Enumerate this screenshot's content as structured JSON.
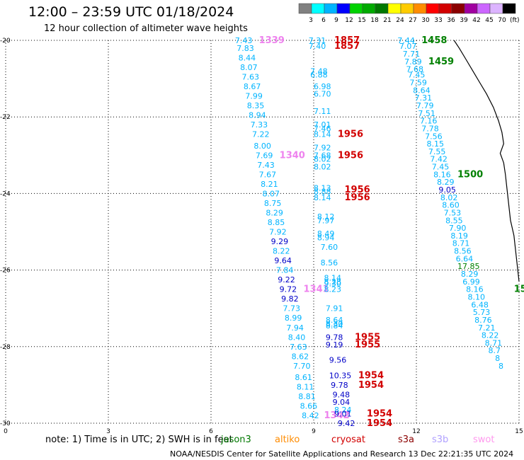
{
  "header": {
    "title": "12:00 – 23:59 UTC 01/18/2024",
    "subtitle": "12 hour collection of altimeter wave heights"
  },
  "legend": {
    "unit": "(ft)",
    "bins": [
      {
        "label": "3",
        "color": "#808080"
      },
      {
        "label": "6",
        "color": "#00ffff"
      },
      {
        "label": "9",
        "color": "#00b4ff"
      },
      {
        "label": "12",
        "color": "#0000ff"
      },
      {
        "label": "15",
        "color": "#00d200"
      },
      {
        "label": "18",
        "color": "#00aa00"
      },
      {
        "label": "21",
        "color": "#007800"
      },
      {
        "label": "24",
        "color": "#ffff00"
      },
      {
        "label": "27",
        "color": "#ffcc00"
      },
      {
        "label": "30",
        "color": "#ff8c00"
      },
      {
        "label": "33",
        "color": "#ff0000"
      },
      {
        "label": "36",
        "color": "#d20000"
      },
      {
        "label": "39",
        "color": "#8b0000"
      },
      {
        "label": "42",
        "color": "#a000a0"
      },
      {
        "label": "45",
        "color": "#cc66ff"
      },
      {
        "label": "70",
        "color": "#dcb4ff"
      },
      {
        "label": "",
        "color": "#000000"
      }
    ]
  },
  "axes": {
    "x_ticks": [
      "0",
      "3",
      "6",
      "9",
      "12",
      "15"
    ],
    "y_ticks": [
      "-20",
      "-22",
      "-24",
      "-26",
      "-28",
      "-30"
    ]
  },
  "map_data": {
    "lon_range": [
      0,
      15
    ],
    "lat_range": [
      -30,
      -20
    ],
    "grid": true,
    "coastline": [
      [
        13.1,
        -20.0
      ],
      [
        13.25,
        -20.2
      ],
      [
        13.45,
        -20.5
      ],
      [
        13.65,
        -20.8
      ],
      [
        13.85,
        -21.1
      ],
      [
        14.05,
        -21.4
      ],
      [
        14.25,
        -21.75
      ],
      [
        14.4,
        -22.1
      ],
      [
        14.5,
        -22.4
      ],
      [
        14.55,
        -22.7
      ],
      [
        14.45,
        -22.95
      ],
      [
        14.55,
        -23.2
      ],
      [
        14.6,
        -23.5
      ],
      [
        14.65,
        -23.9
      ],
      [
        14.7,
        -24.3
      ],
      [
        14.75,
        -24.7
      ],
      [
        14.85,
        -25.1
      ],
      [
        14.9,
        -25.5
      ],
      [
        14.95,
        -25.9
      ],
      [
        15.0,
        -26.3
      ]
    ],
    "track_colors": {
      "cyan": "#00b4ff",
      "blue": "#0000c8",
      "red": "#d20000",
      "green": "#008000",
      "pink": "#ee82ee"
    },
    "labels": [
      {
        "t": "7.43",
        "lon": 6.7,
        "lat": -20.0,
        "c": "cyan"
      },
      {
        "t": "1339",
        "lon": 7.4,
        "lat": -20.0,
        "c": "pink",
        "big": true
      },
      {
        "t": "7.83",
        "lon": 6.75,
        "lat": -20.2,
        "c": "cyan"
      },
      {
        "t": "8.44",
        "lon": 6.8,
        "lat": -20.45,
        "c": "cyan"
      },
      {
        "t": "8.07",
        "lon": 6.85,
        "lat": -20.7,
        "c": "cyan"
      },
      {
        "t": "7.63",
        "lon": 6.9,
        "lat": -20.95,
        "c": "cyan"
      },
      {
        "t": "8.67",
        "lon": 6.95,
        "lat": -21.2,
        "c": "cyan"
      },
      {
        "t": "7.99",
        "lon": 7.0,
        "lat": -21.45,
        "c": "cyan"
      },
      {
        "t": "8.35",
        "lon": 7.05,
        "lat": -21.7,
        "c": "cyan"
      },
      {
        "t": "8.94",
        "lon": 7.1,
        "lat": -21.95,
        "c": "cyan"
      },
      {
        "t": "7.33",
        "lon": 7.15,
        "lat": -22.2,
        "c": "cyan"
      },
      {
        "t": "7.22",
        "lon": 7.2,
        "lat": -22.45,
        "c": "cyan"
      },
      {
        "t": "8.00",
        "lon": 7.25,
        "lat": -22.75,
        "c": "cyan"
      },
      {
        "t": "7.69",
        "lon": 7.3,
        "lat": -23.0,
        "c": "cyan"
      },
      {
        "t": "1340",
        "lon": 8.0,
        "lat": -23.0,
        "c": "pink",
        "big": true
      },
      {
        "t": "7.43",
        "lon": 7.35,
        "lat": -23.25,
        "c": "cyan"
      },
      {
        "t": "7.67",
        "lon": 7.4,
        "lat": -23.5,
        "c": "cyan"
      },
      {
        "t": "8.21",
        "lon": 7.45,
        "lat": -23.75,
        "c": "cyan"
      },
      {
        "t": "8.07",
        "lon": 7.5,
        "lat": -24.0,
        "c": "cyan"
      },
      {
        "t": "8.75",
        "lon": 7.55,
        "lat": -24.25,
        "c": "cyan"
      },
      {
        "t": "8.29",
        "lon": 7.6,
        "lat": -24.5,
        "c": "cyan"
      },
      {
        "t": "8.85",
        "lon": 7.65,
        "lat": -24.75,
        "c": "cyan"
      },
      {
        "t": "7.92",
        "lon": 7.7,
        "lat": -25.0,
        "c": "cyan"
      },
      {
        "t": "9.29",
        "lon": 7.75,
        "lat": -25.25,
        "c": "blue"
      },
      {
        "t": "8.22",
        "lon": 7.8,
        "lat": -25.5,
        "c": "cyan"
      },
      {
        "t": "9.64",
        "lon": 7.85,
        "lat": -25.75,
        "c": "blue"
      },
      {
        "t": "7.84",
        "lon": 7.9,
        "lat": -26.0,
        "c": "cyan"
      },
      {
        "t": "9.22",
        "lon": 7.95,
        "lat": -26.25,
        "c": "blue"
      },
      {
        "t": "9.72",
        "lon": 8.0,
        "lat": -26.5,
        "c": "blue"
      },
      {
        "t": "1341",
        "lon": 8.7,
        "lat": -26.5,
        "c": "pink",
        "big": true
      },
      {
        "t": "9.82",
        "lon": 8.05,
        "lat": -26.75,
        "c": "blue"
      },
      {
        "t": "7.73",
        "lon": 8.1,
        "lat": -27.0,
        "c": "cyan"
      },
      {
        "t": "8.99",
        "lon": 8.15,
        "lat": -27.25,
        "c": "cyan"
      },
      {
        "t": "7.94",
        "lon": 8.2,
        "lat": -27.5,
        "c": "cyan"
      },
      {
        "t": "8.40",
        "lon": 8.25,
        "lat": -27.75,
        "c": "cyan"
      },
      {
        "t": "7.63",
        "lon": 8.3,
        "lat": -28.0,
        "c": "cyan"
      },
      {
        "t": "8.62",
        "lon": 8.35,
        "lat": -28.25,
        "c": "cyan"
      },
      {
        "t": "7.70",
        "lon": 8.4,
        "lat": -28.5,
        "c": "cyan"
      },
      {
        "t": "8.61",
        "lon": 8.45,
        "lat": -28.8,
        "c": "cyan"
      },
      {
        "t": "8.11",
        "lon": 8.5,
        "lat": -29.05,
        "c": "cyan"
      },
      {
        "t": "8.81",
        "lon": 8.55,
        "lat": -29.3,
        "c": "cyan"
      },
      {
        "t": "8.66",
        "lon": 8.6,
        "lat": -29.55,
        "c": "cyan"
      },
      {
        "t": "8.42",
        "lon": 8.65,
        "lat": -29.8,
        "c": "cyan"
      },
      {
        "t": "1342",
        "lon": 9.3,
        "lat": -29.8,
        "c": "pink",
        "big": true
      },
      {
        "t": "7.31",
        "lon": 8.85,
        "lat": -20.0,
        "c": "cyan"
      },
      {
        "t": "1857",
        "lon": 9.6,
        "lat": -20.0,
        "c": "red",
        "big": true
      },
      {
        "t": "7.40",
        "lon": 8.85,
        "lat": -20.15,
        "c": "cyan"
      },
      {
        "t": "1857",
        "lon": 9.6,
        "lat": -20.15,
        "c": "red",
        "big": true
      },
      {
        "t": "7.48",
        "lon": 8.9,
        "lat": -20.8,
        "c": "cyan"
      },
      {
        "t": "6.88",
        "lon": 8.9,
        "lat": -20.9,
        "c": "cyan"
      },
      {
        "t": "6.98",
        "lon": 9.0,
        "lat": -21.2,
        "c": "cyan"
      },
      {
        "t": "6.70",
        "lon": 9.0,
        "lat": -21.4,
        "c": "cyan"
      },
      {
        "t": "7.11",
        "lon": 9.0,
        "lat": -21.85,
        "c": "cyan"
      },
      {
        "t": "7.01",
        "lon": 9.0,
        "lat": -22.2,
        "c": "cyan"
      },
      {
        "t": "7.46",
        "lon": 9.0,
        "lat": -22.3,
        "c": "cyan"
      },
      {
        "t": "8.14",
        "lon": 9.0,
        "lat": -22.45,
        "c": "cyan"
      },
      {
        "t": "1956",
        "lon": 9.7,
        "lat": -22.45,
        "c": "red",
        "big": true
      },
      {
        "t": "7.92",
        "lon": 9.0,
        "lat": -22.8,
        "c": "cyan"
      },
      {
        "t": "7.68",
        "lon": 9.0,
        "lat": -23.0,
        "c": "cyan"
      },
      {
        "t": "1956",
        "lon": 9.7,
        "lat": -23.0,
        "c": "red",
        "big": true
      },
      {
        "t": "8.02",
        "lon": 9.0,
        "lat": -23.1,
        "c": "cyan"
      },
      {
        "t": "8.02",
        "lon": 9.0,
        "lat": -23.3,
        "c": "cyan"
      },
      {
        "t": "8.13",
        "lon": 9.0,
        "lat": -23.85,
        "c": "cyan"
      },
      {
        "t": "1956",
        "lon": 9.9,
        "lat": -23.9,
        "c": "red",
        "big": true
      },
      {
        "t": "8.88",
        "lon": 9.0,
        "lat": -23.95,
        "c": "cyan"
      },
      {
        "t": "8.14",
        "lon": 9.0,
        "lat": -24.1,
        "c": "cyan"
      },
      {
        "t": "1956",
        "lon": 9.9,
        "lat": -24.1,
        "c": "red",
        "big": true
      },
      {
        "t": "8.12",
        "lon": 9.1,
        "lat": -24.6,
        "c": "cyan"
      },
      {
        "t": "7.97",
        "lon": 9.1,
        "lat": -24.7,
        "c": "cyan"
      },
      {
        "t": "8.49",
        "lon": 9.1,
        "lat": -25.05,
        "c": "cyan"
      },
      {
        "t": "8.94",
        "lon": 9.1,
        "lat": -25.15,
        "c": "cyan"
      },
      {
        "t": "7.60",
        "lon": 9.2,
        "lat": -25.4,
        "c": "cyan"
      },
      {
        "t": "8.56",
        "lon": 9.2,
        "lat": -25.8,
        "c": "cyan"
      },
      {
        "t": "8.14",
        "lon": 9.3,
        "lat": -26.2,
        "c": "cyan"
      },
      {
        "t": "8.28",
        "lon": 9.3,
        "lat": -26.3,
        "c": "cyan"
      },
      {
        "t": "9.30",
        "lon": 9.3,
        "lat": -26.35,
        "c": "cyan"
      },
      {
        "t": "8.23",
        "lon": 9.3,
        "lat": -26.5,
        "c": "cyan"
      },
      {
        "t": "7.91",
        "lon": 9.35,
        "lat": -27.0,
        "c": "cyan"
      },
      {
        "t": "8.64",
        "lon": 9.35,
        "lat": -27.3,
        "c": "cyan"
      },
      {
        "t": "8.30",
        "lon": 9.35,
        "lat": -27.4,
        "c": "cyan"
      },
      {
        "t": "8.84",
        "lon": 9.35,
        "lat": -27.45,
        "c": "cyan"
      },
      {
        "t": "9.78",
        "lon": 9.35,
        "lat": -27.75,
        "c": "blue"
      },
      {
        "t": "1955",
        "lon": 10.2,
        "lat": -27.75,
        "c": "red",
        "big": true
      },
      {
        "t": "9.19",
        "lon": 9.35,
        "lat": -27.95,
        "c": "blue"
      },
      {
        "t": "1955",
        "lon": 10.2,
        "lat": -27.95,
        "c": "red",
        "big": true
      },
      {
        "t": "9.56",
        "lon": 9.45,
        "lat": -28.35,
        "c": "blue"
      },
      {
        "t": "10.35",
        "lon": 9.45,
        "lat": -28.75,
        "c": "blue"
      },
      {
        "t": "1954",
        "lon": 10.3,
        "lat": -28.75,
        "c": "red",
        "big": true
      },
      {
        "t": "9.78",
        "lon": 9.5,
        "lat": -29.0,
        "c": "blue"
      },
      {
        "t": "1954",
        "lon": 10.3,
        "lat": -29.0,
        "c": "red",
        "big": true
      },
      {
        "t": "9.48",
        "lon": 9.55,
        "lat": -29.25,
        "c": "blue"
      },
      {
        "t": "9.04",
        "lon": 9.55,
        "lat": -29.45,
        "c": "blue"
      },
      {
        "t": "8.24",
        "lon": 9.6,
        "lat": -29.65,
        "c": "cyan"
      },
      {
        "t": "9.01",
        "lon": 9.6,
        "lat": -29.75,
        "c": "blue"
      },
      {
        "t": "1954",
        "lon": 10.55,
        "lat": -29.75,
        "c": "red",
        "big": true
      },
      {
        "t": "9.42",
        "lon": 9.7,
        "lat": -30.0,
        "c": "blue"
      },
      {
        "t": "1954",
        "lon": 10.55,
        "lat": -30.0,
        "c": "red",
        "big": true
      },
      {
        "t": "7.44",
        "lon": 11.45,
        "lat": -20.0,
        "c": "cyan"
      },
      {
        "t": "1458",
        "lon": 12.15,
        "lat": -20.0,
        "c": "green",
        "big": true
      },
      {
        "t": "7.07",
        "lon": 11.5,
        "lat": -20.15,
        "c": "cyan"
      },
      {
        "t": "7.71",
        "lon": 11.6,
        "lat": -20.35,
        "c": "cyan"
      },
      {
        "t": "7.89",
        "lon": 11.65,
        "lat": -20.55,
        "c": "cyan"
      },
      {
        "t": "1459",
        "lon": 12.35,
        "lat": -20.55,
        "c": "green",
        "big": true
      },
      {
        "t": "7.68",
        "lon": 11.7,
        "lat": -20.75,
        "c": "cyan"
      },
      {
        "t": "7.45",
        "lon": 11.75,
        "lat": -20.9,
        "c": "cyan"
      },
      {
        "t": "7.59",
        "lon": 11.8,
        "lat": -21.1,
        "c": "cyan"
      },
      {
        "t": "8.64",
        "lon": 11.9,
        "lat": -21.3,
        "c": "cyan"
      },
      {
        "t": "7.31",
        "lon": 11.95,
        "lat": -21.5,
        "c": "cyan"
      },
      {
        "t": "7.79",
        "lon": 12.0,
        "lat": -21.7,
        "c": "cyan"
      },
      {
        "t": "7.51",
        "lon": 12.05,
        "lat": -21.9,
        "c": "cyan"
      },
      {
        "t": "7.16",
        "lon": 12.1,
        "lat": -22.1,
        "c": "cyan"
      },
      {
        "t": "7.78",
        "lon": 12.15,
        "lat": -22.3,
        "c": "cyan"
      },
      {
        "t": "7.56",
        "lon": 12.25,
        "lat": -22.5,
        "c": "cyan"
      },
      {
        "t": "8.15",
        "lon": 12.3,
        "lat": -22.7,
        "c": "cyan"
      },
      {
        "t": "7.55",
        "lon": 12.35,
        "lat": -22.9,
        "c": "cyan"
      },
      {
        "t": "7.42",
        "lon": 12.4,
        "lat": -23.1,
        "c": "cyan"
      },
      {
        "t": "7.45",
        "lon": 12.45,
        "lat": -23.3,
        "c": "cyan"
      },
      {
        "t": "8.16",
        "lon": 12.5,
        "lat": -23.5,
        "c": "cyan"
      },
      {
        "t": "1500",
        "lon": 13.2,
        "lat": -23.5,
        "c": "green",
        "big": true
      },
      {
        "t": "8.29",
        "lon": 12.6,
        "lat": -23.7,
        "c": "cyan"
      },
      {
        "t": "9.05",
        "lon": 12.65,
        "lat": -23.9,
        "c": "blue"
      },
      {
        "t": "8.02",
        "lon": 12.7,
        "lat": -24.1,
        "c": "cyan"
      },
      {
        "t": "8.60",
        "lon": 12.75,
        "lat": -24.3,
        "c": "cyan"
      },
      {
        "t": "7.53",
        "lon": 12.8,
        "lat": -24.5,
        "c": "cyan"
      },
      {
        "t": "8.55",
        "lon": 12.85,
        "lat": -24.7,
        "c": "cyan"
      },
      {
        "t": "7.90",
        "lon": 12.95,
        "lat": -24.9,
        "c": "cyan"
      },
      {
        "t": "8.19",
        "lon": 13.0,
        "lat": -25.1,
        "c": "cyan"
      },
      {
        "t": "8.71",
        "lon": 13.05,
        "lat": -25.3,
        "c": "cyan"
      },
      {
        "t": "8.56",
        "lon": 13.1,
        "lat": -25.5,
        "c": "cyan"
      },
      {
        "t": "6.64",
        "lon": 13.15,
        "lat": -25.7,
        "c": "cyan"
      },
      {
        "t": "17.85",
        "lon": 13.2,
        "lat": -25.9,
        "c": "green"
      },
      {
        "t": "8.29",
        "lon": 13.3,
        "lat": -26.1,
        "c": "cyan"
      },
      {
        "t": "6.99",
        "lon": 13.35,
        "lat": -26.3,
        "c": "cyan"
      },
      {
        "t": "8.16",
        "lon": 13.45,
        "lat": -26.5,
        "c": "cyan"
      },
      {
        "t": "15",
        "lon": 14.85,
        "lat": -26.5,
        "c": "green",
        "big": true
      },
      {
        "t": "8.10",
        "lon": 13.5,
        "lat": -26.7,
        "c": "cyan"
      },
      {
        "t": "6.48",
        "lon": 13.6,
        "lat": -26.9,
        "c": "cyan"
      },
      {
        "t": "5.73",
        "lon": 13.65,
        "lat": -27.1,
        "c": "cyan"
      },
      {
        "t": "8.76",
        "lon": 13.7,
        "lat": -27.3,
        "c": "cyan"
      },
      {
        "t": "7.21",
        "lon": 13.8,
        "lat": -27.5,
        "c": "cyan"
      },
      {
        "t": "8.22",
        "lon": 13.9,
        "lat": -27.7,
        "c": "cyan"
      },
      {
        "t": "8.71",
        "lon": 14.0,
        "lat": -27.9,
        "c": "cyan"
      },
      {
        "t": "8.7",
        "lon": 14.1,
        "lat": -28.1,
        "c": "cyan"
      },
      {
        "t": "8",
        "lon": 14.3,
        "lat": -28.3,
        "c": "cyan"
      },
      {
        "t": "8",
        "lon": 14.4,
        "lat": -28.5,
        "c": "cyan"
      }
    ]
  },
  "note": "note:  1) Time is in UTC;  2) SWH is in feet",
  "satellites": [
    {
      "name": "jason3",
      "color": "#007800"
    },
    {
      "name": "altiko",
      "color": "#ff8c00"
    },
    {
      "name": "cryosat",
      "color": "#d20000"
    },
    {
      "name": "s3a",
      "color": "#8b0000"
    },
    {
      "name": "s3b",
      "color": "#b0a0ff"
    },
    {
      "name": "swot",
      "color": "#ff99ee"
    }
  ],
  "footer": "NOAA/NESDIS Center for Satellite Applications and Research     13 Dec 22:21:35 UTC 2024"
}
